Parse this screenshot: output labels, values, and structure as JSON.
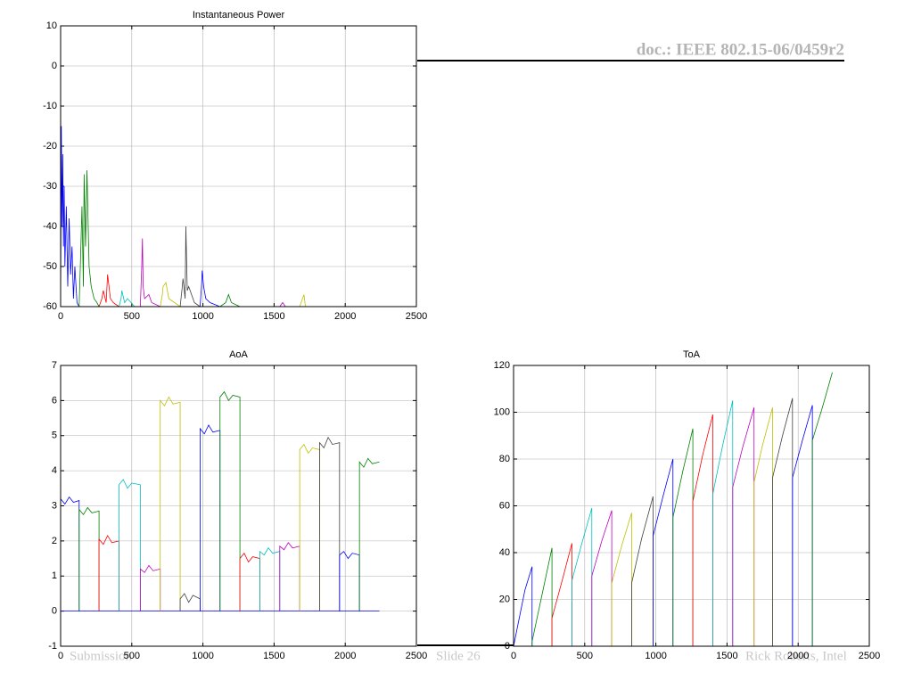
{
  "header": "doc.: IEEE 802.15-06/0459r2",
  "footer": {
    "left": "Submission",
    "center": "Slide 26",
    "right": "Rick Roberts, Intel"
  },
  "chart_data": [
    {
      "type": "line",
      "title": "Instantaneous Power",
      "grid": true,
      "xlim": [
        0,
        2500
      ],
      "xticks": [
        0,
        500,
        1000,
        1500,
        2000,
        2500
      ],
      "ylim": [
        -60,
        10
      ],
      "yticks": [
        -60,
        -50,
        -40,
        -30,
        -20,
        -10,
        0,
        10
      ],
      "series": [
        {
          "color": "#0000ff",
          "x": [
            0,
            5,
            10,
            15,
            20,
            25,
            30,
            40,
            50,
            60,
            70,
            80,
            90,
            100,
            115,
            130
          ],
          "values": [
            -60,
            -15,
            -40,
            -22,
            -45,
            -30,
            -50,
            -35,
            -55,
            -38,
            -52,
            -45,
            -58,
            -50,
            -59,
            -60
          ]
        },
        {
          "color": "#008000",
          "x": [
            130,
            140,
            150,
            160,
            165,
            175,
            185,
            200,
            215,
            235,
            255,
            270
          ],
          "values": [
            -60,
            -48,
            -35,
            -55,
            -27,
            -45,
            -26,
            -50,
            -55,
            -58,
            -59,
            -60
          ]
        },
        {
          "color": "#ff0000",
          "x": [
            270,
            290,
            300,
            320,
            330,
            350,
            370,
            410
          ],
          "values": [
            -60,
            -58,
            -56,
            -59,
            -52,
            -58,
            -59,
            -60
          ]
        },
        {
          "color": "#00bfbf",
          "x": [
            410,
            425,
            430,
            450,
            470,
            520,
            560
          ],
          "values": [
            -60,
            -58,
            -56,
            -59,
            -58,
            -60,
            -60
          ]
        },
        {
          "color": "#bf00bf",
          "x": [
            560,
            570,
            575,
            580,
            590,
            620,
            640,
            700
          ],
          "values": [
            -60,
            -50,
            -43,
            -55,
            -58,
            -57,
            -59,
            -60
          ]
        },
        {
          "color": "#bfbf00",
          "x": [
            700,
            715,
            720,
            740,
            760,
            800,
            840
          ],
          "values": [
            -60,
            -57,
            -55,
            -54,
            -58,
            -59,
            -60
          ]
        },
        {
          "color": "#404040",
          "x": [
            840,
            855,
            860,
            875,
            880,
            890,
            900,
            940,
            980
          ],
          "values": [
            -60,
            -55,
            -53,
            -58,
            -40,
            -56,
            -55,
            -59,
            -60
          ]
        },
        {
          "color": "#0000ff",
          "x": [
            980,
            990,
            995,
            1005,
            1020,
            1050,
            1120
          ],
          "values": [
            -60,
            -55,
            -51,
            -55,
            -58,
            -59,
            -60
          ]
        },
        {
          "color": "#008000",
          "x": [
            1120,
            1160,
            1180,
            1200,
            1260
          ],
          "values": [
            -60,
            -59,
            -57,
            -59,
            -60
          ]
        },
        {
          "color": "#ff0000",
          "x": [
            1260,
            1400
          ],
          "values": [
            -60,
            -60
          ]
        },
        {
          "color": "#bf00bf",
          "x": [
            1540,
            1560,
            1580,
            1680
          ],
          "values": [
            -60,
            -59,
            -60,
            -60
          ]
        },
        {
          "color": "#bfbf00",
          "x": [
            1680,
            1700,
            1710,
            1720,
            1820
          ],
          "values": [
            -60,
            -58,
            -57,
            -60,
            -60
          ]
        },
        {
          "color": "#0000ff",
          "x": [
            1820,
            2240
          ],
          "values": [
            -60,
            -60
          ]
        }
      ]
    },
    {
      "type": "line",
      "title": "AoA",
      "grid": true,
      "xlim": [
        0,
        2500
      ],
      "xticks": [
        0,
        500,
        1000,
        1500,
        2000,
        2500
      ],
      "ylim": [
        -1,
        7
      ],
      "yticks": [
        -1,
        0,
        1,
        2,
        3,
        4,
        5,
        6,
        7
      ],
      "series": [
        {
          "color": "#0000ff",
          "x": [
            0,
            2240
          ],
          "values": [
            0,
            0
          ]
        },
        {
          "color": "#0000ff",
          "x": [
            0,
            30,
            60,
            90,
            130,
            130
          ],
          "values": [
            3.2,
            3.05,
            3.25,
            3.1,
            3.15,
            0
          ]
        },
        {
          "color": "#008000",
          "x": [
            130,
            130,
            160,
            190,
            220,
            270,
            270
          ],
          "values": [
            0,
            2.9,
            2.75,
            2.95,
            2.8,
            2.85,
            0
          ]
        },
        {
          "color": "#ff0000",
          "x": [
            270,
            270,
            300,
            330,
            360,
            410,
            410
          ],
          "values": [
            0,
            2.05,
            1.9,
            2.15,
            1.95,
            2.0,
            0
          ]
        },
        {
          "color": "#00bfbf",
          "x": [
            410,
            410,
            440,
            470,
            500,
            560,
            560
          ],
          "values": [
            0,
            3.6,
            3.75,
            3.5,
            3.65,
            3.6,
            0
          ]
        },
        {
          "color": "#bf00bf",
          "x": [
            560,
            560,
            590,
            620,
            650,
            700,
            700
          ],
          "values": [
            0,
            1.2,
            1.1,
            1.3,
            1.15,
            1.2,
            0
          ]
        },
        {
          "color": "#bfbf00",
          "x": [
            700,
            700,
            730,
            760,
            790,
            840,
            840
          ],
          "values": [
            0,
            6.0,
            5.85,
            6.1,
            5.9,
            5.95,
            0
          ]
        },
        {
          "color": "#404040",
          "x": [
            840,
            840,
            870,
            900,
            930,
            980,
            980
          ],
          "values": [
            0,
            0.35,
            0.5,
            0.25,
            0.45,
            0.35,
            0
          ]
        },
        {
          "color": "#0000ff",
          "x": [
            980,
            980,
            1010,
            1040,
            1070,
            1120,
            1120
          ],
          "values": [
            0,
            5.2,
            5.05,
            5.3,
            5.1,
            5.15,
            0
          ]
        },
        {
          "color": "#008000",
          "x": [
            1120,
            1120,
            1150,
            1180,
            1210,
            1260,
            1260
          ],
          "values": [
            0,
            6.1,
            6.25,
            6.0,
            6.15,
            6.1,
            0
          ]
        },
        {
          "color": "#ff0000",
          "x": [
            1260,
            1260,
            1290,
            1320,
            1350,
            1400,
            1400
          ],
          "values": [
            0,
            1.5,
            1.65,
            1.4,
            1.55,
            1.5,
            0
          ]
        },
        {
          "color": "#00bfbf",
          "x": [
            1400,
            1400,
            1430,
            1460,
            1490,
            1540,
            1540
          ],
          "values": [
            0,
            1.7,
            1.6,
            1.8,
            1.65,
            1.7,
            0
          ]
        },
        {
          "color": "#bf00bf",
          "x": [
            1540,
            1540,
            1570,
            1600,
            1630,
            1680,
            1680
          ],
          "values": [
            0,
            1.85,
            1.75,
            1.95,
            1.8,
            1.85,
            0
          ]
        },
        {
          "color": "#bfbf00",
          "x": [
            1680,
            1680,
            1710,
            1740,
            1770,
            1820,
            1820
          ],
          "values": [
            0,
            4.6,
            4.75,
            4.5,
            4.65,
            4.6,
            0
          ]
        },
        {
          "color": "#404040",
          "x": [
            1820,
            1820,
            1850,
            1880,
            1910,
            1960,
            1960
          ],
          "values": [
            0,
            4.8,
            4.65,
            4.95,
            4.75,
            4.8,
            0
          ]
        },
        {
          "color": "#0000ff",
          "x": [
            1960,
            1960,
            1990,
            2020,
            2050,
            2100,
            2100
          ],
          "values": [
            0,
            1.6,
            1.7,
            1.5,
            1.65,
            1.6,
            0
          ]
        },
        {
          "color": "#008000",
          "x": [
            2100,
            2100,
            2130,
            2160,
            2190,
            2240
          ],
          "values": [
            0,
            4.25,
            4.1,
            4.35,
            4.2,
            4.25
          ]
        }
      ]
    },
    {
      "type": "line",
      "title": "ToA",
      "grid": true,
      "xlim": [
        0,
        2500
      ],
      "xticks": [
        0,
        500,
        1000,
        1500,
        2000,
        2500
      ],
      "ylim": [
        0,
        120
      ],
      "yticks": [
        0,
        20,
        40,
        60,
        80,
        100,
        120
      ],
      "series": [
        {
          "color": "#0000ff",
          "x": [
            0,
            40,
            80,
            130,
            130
          ],
          "values": [
            0,
            12,
            24,
            34,
            0
          ]
        },
        {
          "color": "#008000",
          "x": [
            130,
            130,
            200,
            270,
            270
          ],
          "values": [
            0,
            2,
            22,
            42,
            0
          ]
        },
        {
          "color": "#ff0000",
          "x": [
            270,
            270,
            350,
            410,
            410
          ],
          "values": [
            0,
            12,
            30,
            44,
            0
          ]
        },
        {
          "color": "#00bfbf",
          "x": [
            410,
            410,
            480,
            550,
            550
          ],
          "values": [
            0,
            28,
            44,
            59,
            0
          ]
        },
        {
          "color": "#bf00bf",
          "x": [
            550,
            550,
            620,
            690,
            690
          ],
          "values": [
            0,
            30,
            45,
            58,
            0
          ]
        },
        {
          "color": "#bfbf00",
          "x": [
            690,
            690,
            760,
            830,
            830
          ],
          "values": [
            0,
            27,
            43,
            57,
            0
          ]
        },
        {
          "color": "#404040",
          "x": [
            830,
            830,
            900,
            980,
            980
          ],
          "values": [
            0,
            27,
            46,
            64,
            0
          ]
        },
        {
          "color": "#0000ff",
          "x": [
            980,
            980,
            1050,
            1120,
            1120
          ],
          "values": [
            0,
            47,
            64,
            80,
            0
          ]
        },
        {
          "color": "#008000",
          "x": [
            1120,
            1120,
            1190,
            1260,
            1260
          ],
          "values": [
            0,
            55,
            75,
            93,
            0
          ]
        },
        {
          "color": "#ff0000",
          "x": [
            1260,
            1260,
            1330,
            1400,
            1400
          ],
          "values": [
            0,
            62,
            82,
            99,
            0
          ]
        },
        {
          "color": "#00bfbf",
          "x": [
            1400,
            1400,
            1470,
            1540,
            1540
          ],
          "values": [
            0,
            65,
            86,
            105,
            0
          ]
        },
        {
          "color": "#bf00bf",
          "x": [
            1540,
            1540,
            1610,
            1690,
            1690
          ],
          "values": [
            0,
            68,
            85,
            102,
            0
          ]
        },
        {
          "color": "#bfbf00",
          "x": [
            1690,
            1690,
            1750,
            1820,
            1820
          ],
          "values": [
            0,
            70,
            86,
            102,
            0
          ]
        },
        {
          "color": "#404040",
          "x": [
            1820,
            1820,
            1890,
            1960,
            1960
          ],
          "values": [
            0,
            72,
            90,
            106,
            0
          ]
        },
        {
          "color": "#0000ff",
          "x": [
            1960,
            1960,
            2030,
            2100,
            2100
          ],
          "values": [
            0,
            72,
            88,
            103,
            0
          ]
        },
        {
          "color": "#008000",
          "x": [
            2100,
            2100,
            2170,
            2240
          ],
          "values": [
            0,
            88,
            102,
            117
          ]
        }
      ]
    }
  ]
}
